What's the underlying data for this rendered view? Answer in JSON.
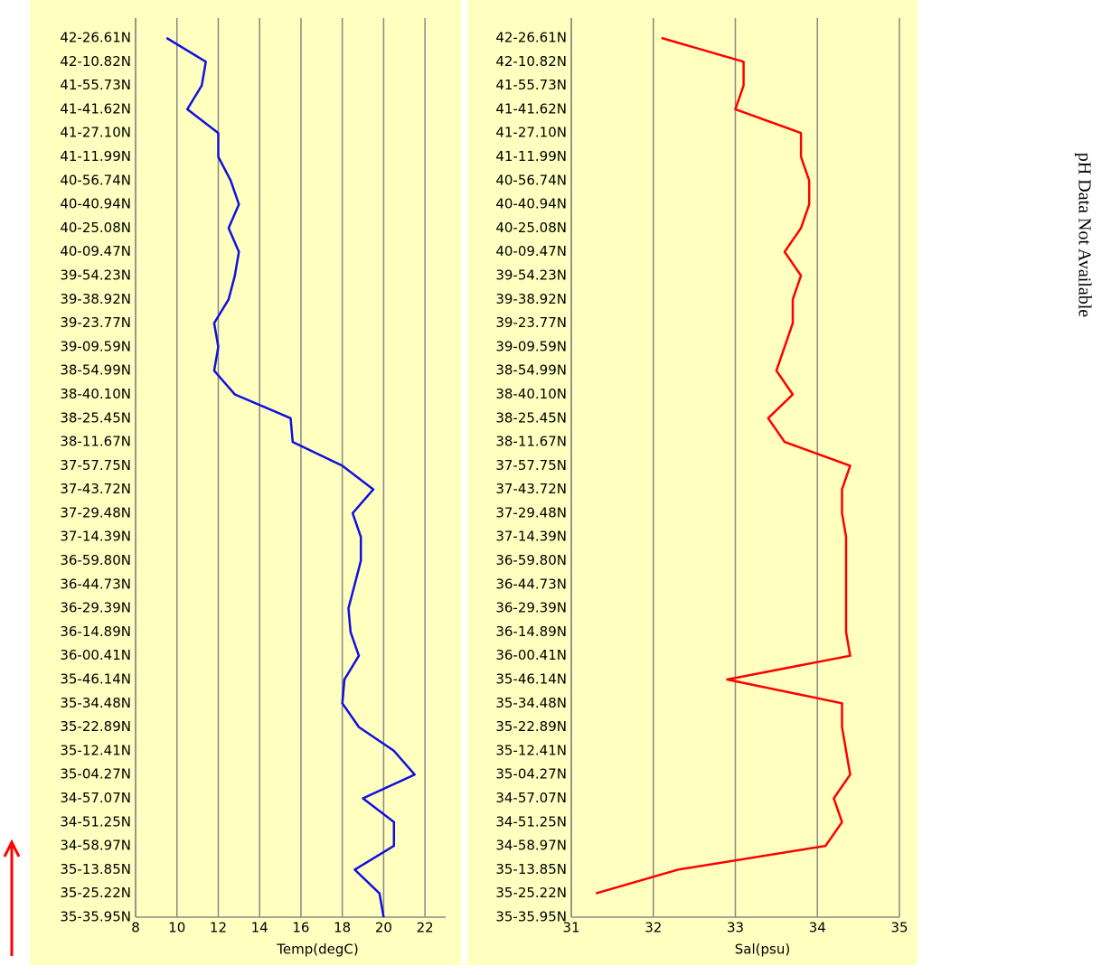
{
  "note": "pH Data Not Available",
  "chart_data": [
    {
      "type": "line",
      "xlabel": "Temp(degC)",
      "categories": [
        "42-26.61N",
        "42-10.82N",
        "41-55.73N",
        "41-41.62N",
        "41-27.10N",
        "41-11.99N",
        "40-56.74N",
        "40-40.94N",
        "40-25.08N",
        "40-09.47N",
        "39-54.23N",
        "39-38.92N",
        "39-23.77N",
        "39-09.59N",
        "38-54.99N",
        "38-40.10N",
        "38-25.45N",
        "38-11.67N",
        "37-57.75N",
        "37-43.72N",
        "37-29.48N",
        "37-14.39N",
        "36-59.80N",
        "36-44.73N",
        "36-29.39N",
        "36-14.89N",
        "36-00.41N",
        "35-46.14N",
        "35-34.48N",
        "35-22.89N",
        "35-12.41N",
        "35-04.27N",
        "34-57.07N",
        "34-51.25N",
        "34-58.97N",
        "35-13.85N",
        "35-25.22N",
        "35-35.95N"
      ],
      "series": [
        {
          "color": "#1010e0",
          "values": [
            9.5,
            11.4,
            11.2,
            10.5,
            12.0,
            12.0,
            12.6,
            13.0,
            12.5,
            13.0,
            12.8,
            12.5,
            11.8,
            12.0,
            11.8,
            12.8,
            15.5,
            15.6,
            18.0,
            19.5,
            18.5,
            18.9,
            18.9,
            18.6,
            18.3,
            18.4,
            18.8,
            18.1,
            18.0,
            18.8,
            20.5,
            21.5,
            19.0,
            20.5,
            20.5,
            18.6,
            19.8,
            20.0
          ]
        }
      ],
      "xlim": [
        8,
        23
      ],
      "xticks": [
        8,
        10,
        12,
        14,
        16,
        18,
        20,
        22
      ],
      "grid": true
    },
    {
      "type": "line",
      "xlabel": "Sal(psu)",
      "categories": [
        "42-26.61N",
        "42-10.82N",
        "41-55.73N",
        "41-41.62N",
        "41-27.10N",
        "41-11.99N",
        "40-56.74N",
        "40-40.94N",
        "40-25.08N",
        "40-09.47N",
        "39-54.23N",
        "39-38.92N",
        "39-23.77N",
        "39-09.59N",
        "38-54.99N",
        "38-40.10N",
        "38-25.45N",
        "38-11.67N",
        "37-57.75N",
        "37-43.72N",
        "37-29.48N",
        "37-14.39N",
        "36-59.80N",
        "36-44.73N",
        "36-29.39N",
        "36-14.89N",
        "36-00.41N",
        "35-46.14N",
        "35-34.48N",
        "35-22.89N",
        "35-12.41N",
        "35-04.27N",
        "34-57.07N",
        "34-51.25N",
        "34-58.97N",
        "35-13.85N",
        "35-25.22N",
        "35-35.95N"
      ],
      "series": [
        {
          "color": "#ff0000",
          "values": [
            32.1,
            33.1,
            33.1,
            33.0,
            33.8,
            33.8,
            33.9,
            33.9,
            33.8,
            33.6,
            33.8,
            33.7,
            33.7,
            33.6,
            33.5,
            33.7,
            33.4,
            33.6,
            34.4,
            34.3,
            34.3,
            34.35,
            34.35,
            34.35,
            34.35,
            34.35,
            34.4,
            32.9,
            34.3,
            34.3,
            34.35,
            34.4,
            34.2,
            34.3,
            34.1,
            32.3,
            31.3,
            null
          ]
        }
      ],
      "xlim": [
        31,
        35
      ],
      "xticks": [
        31,
        32,
        33,
        34,
        35
      ],
      "grid": true
    }
  ]
}
